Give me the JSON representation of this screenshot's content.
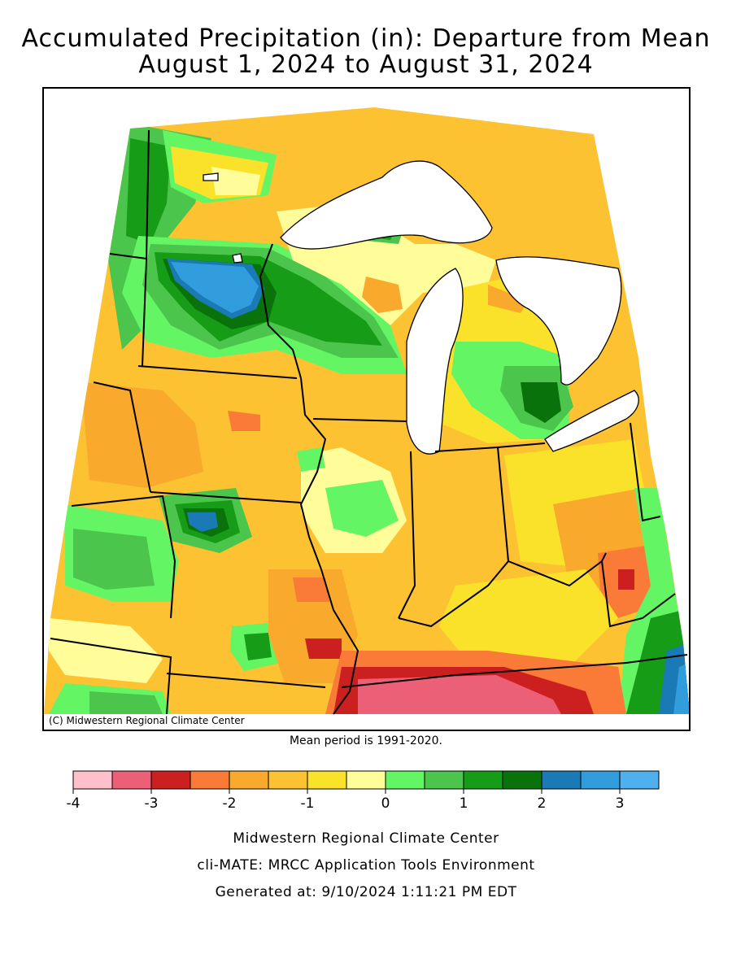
{
  "title_line1": "Accumulated Precipitation (in): Departure from Mean",
  "title_line2": "August 1, 2024 to August 31, 2024",
  "credit": "(C) Midwestern Regional Climate Center",
  "mean_period": "Mean period is 1991-2020.",
  "legend": {
    "colors": [
      "#ffc0cb",
      "#ec6077",
      "#cc2020",
      "#fa7a38",
      "#f9a92c",
      "#fcc232",
      "#fbe22a",
      "#fffc9a",
      "#64f564",
      "#4bc54b",
      "#169c16",
      "#0a720a",
      "#1a7ab6",
      "#319ddd",
      "#4eb1ed"
    ],
    "ticks": [
      "-4",
      "-3",
      "-2",
      "-1",
      "0",
      "1",
      "2",
      "3"
    ]
  },
  "footer": {
    "line1": "Midwestern Regional Climate Center",
    "line2": "cli-MATE: MRCC Application Tools Environment",
    "line3": "Generated at: 9/10/2024 1:11:21 PM EDT"
  }
}
